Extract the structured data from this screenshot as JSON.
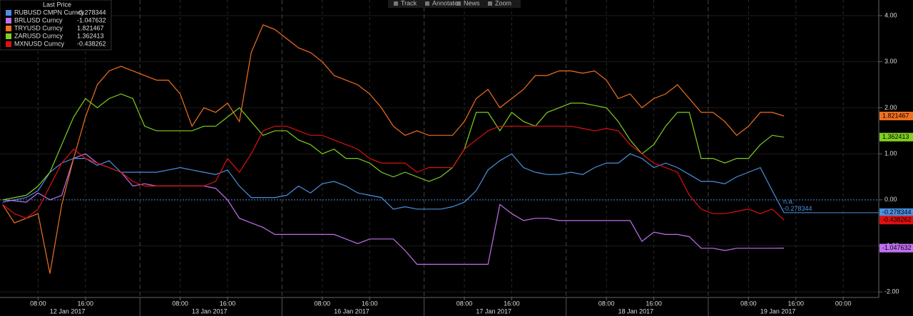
{
  "toolbar": [
    "Track",
    "Annotate",
    "News",
    "Zoom"
  ],
  "chart_data": {
    "type": "line",
    "legend_title": "Last Price",
    "annotation": "n.a.",
    "categories": [
      null,
      null,
      null,
      null,
      "08:00",
      null,
      null,
      null,
      "16:00",
      null,
      null,
      null,
      null,
      null,
      null,
      null,
      "08:00",
      null,
      null,
      null,
      "16:00",
      null,
      null,
      null,
      null,
      null,
      null,
      null,
      "08:00",
      null,
      null,
      null,
      "16:00",
      null,
      null,
      null,
      null,
      null,
      null,
      null,
      "08:00",
      null,
      null,
      null,
      "16:00",
      null,
      null,
      null,
      null,
      null,
      null,
      null,
      "08:00",
      null,
      null,
      null,
      "16:00",
      null,
      null,
      null,
      null,
      null,
      null,
      null,
      "08:00",
      null,
      null,
      null,
      "16:00",
      null,
      null,
      null,
      "00:00",
      null,
      null,
      null
    ],
    "x_groups": [
      "12 Jan 2017",
      "13 Jan 2017",
      "16 Jan 2017",
      "17 Jan 2017",
      "18 Jan 2017",
      "19 Jan 2017"
    ],
    "ylim": [
      -2.12,
      4.34
    ],
    "yticks": [
      {
        "value": -2,
        "label": "-2.00"
      },
      {
        "value": -1,
        "label": "-1.00"
      },
      {
        "value": 0,
        "label": "0.00"
      },
      {
        "value": 1,
        "label": "1.00"
      },
      {
        "value": 2,
        "label": "2.00"
      },
      {
        "value": 3,
        "label": "3.00"
      },
      {
        "value": 4,
        "label": "4.00"
      }
    ],
    "grid": true,
    "series": [
      {
        "name": "RUBUSD CMPN Curncy",
        "color": "#4a90e2",
        "values": [
          null,
          -0.05,
          0.0,
          0.05,
          0.2,
          0.6,
          0.8,
          0.9,
          0.9,
          0.75,
          0.85,
          0.6,
          0.6,
          0.6,
          0.6,
          0.65,
          0.7,
          0.65,
          0.6,
          0.55,
          0.65,
          0.3,
          0.05,
          0.05,
          0.05,
          0.1,
          0.3,
          0.15,
          0.35,
          0.4,
          0.3,
          0.15,
          0.1,
          0.05,
          -0.2,
          -0.15,
          -0.2,
          -0.2,
          -0.2,
          -0.15,
          -0.05,
          0.2,
          0.65,
          0.85,
          1.0,
          0.7,
          0.6,
          0.55,
          0.55,
          0.6,
          0.55,
          0.7,
          0.8,
          0.8,
          1.0,
          0.9,
          0.7,
          0.8,
          0.7,
          0.55,
          0.4,
          0.4,
          0.35,
          0.5,
          0.6,
          0.7,
          0.2,
          -0.278344,
          null,
          null,
          null,
          null,
          null,
          null,
          null,
          null
        ]
      },
      {
        "name": "BRLUSD Curncy",
        "color": "#c070f0",
        "values": [
          null,
          0.0,
          -0.02,
          -0.05,
          0.15,
          0.0,
          0.1,
          0.9,
          1.0,
          0.8,
          0.7,
          0.6,
          0.3,
          0.35,
          0.3,
          0.3,
          0.3,
          0.3,
          0.3,
          0.25,
          0.0,
          -0.4,
          -0.5,
          -0.6,
          -0.75,
          -0.75,
          -0.75,
          -0.75,
          -0.75,
          -0.75,
          -0.85,
          -0.95,
          -0.85,
          -0.85,
          -0.85,
          -1.1,
          -1.4,
          -1.4,
          -1.4,
          -1.4,
          -1.4,
          -1.4,
          -1.4,
          -0.1,
          -0.3,
          -0.45,
          -0.4,
          -0.4,
          -0.45,
          -0.45,
          -0.45,
          -0.45,
          -0.45,
          -0.45,
          -0.45,
          -0.9,
          -0.7,
          -0.75,
          -0.75,
          -0.8,
          -1.05,
          -1.05,
          -1.1,
          -1.05,
          -1.05,
          -1.05,
          -1.05,
          -1.047632,
          null,
          null,
          null,
          null,
          null,
          null,
          null,
          null
        ]
      },
      {
        "name": "TRYUSD Curncy",
        "color": "#f07020",
        "values": [
          null,
          -0.1,
          -0.5,
          -0.4,
          -0.3,
          -1.6,
          -0.1,
          0.9,
          1.8,
          2.5,
          2.8,
          2.9,
          2.8,
          2.7,
          2.6,
          2.6,
          2.3,
          1.6,
          2.0,
          1.9,
          2.1,
          1.7,
          3.2,
          3.8,
          3.7,
          3.5,
          3.3,
          3.2,
          3.0,
          2.7,
          2.6,
          2.5,
          2.3,
          2.0,
          1.6,
          1.4,
          1.5,
          1.4,
          1.4,
          1.4,
          1.7,
          2.2,
          2.4,
          2.0,
          2.2,
          2.4,
          2.7,
          2.7,
          2.8,
          2.8,
          2.75,
          2.8,
          2.6,
          2.2,
          2.3,
          2.0,
          2.2,
          2.3,
          2.5,
          2.2,
          1.9,
          1.9,
          1.7,
          1.4,
          1.6,
          1.9,
          1.9,
          1.821467,
          null,
          null,
          null,
          null,
          null,
          null,
          null,
          null
        ]
      },
      {
        "name": "ZARUSD Curncy",
        "color": "#80d020",
        "values": [
          null,
          0.0,
          0.05,
          0.1,
          0.3,
          0.6,
          1.2,
          1.8,
          2.2,
          2.0,
          2.2,
          2.3,
          2.2,
          1.6,
          1.5,
          1.5,
          1.5,
          1.5,
          1.6,
          1.6,
          1.8,
          2.0,
          1.7,
          1.4,
          1.5,
          1.5,
          1.3,
          1.2,
          1.0,
          1.1,
          0.9,
          0.9,
          0.8,
          0.6,
          0.5,
          0.6,
          0.5,
          0.4,
          0.5,
          0.7,
          1.1,
          1.9,
          1.9,
          1.5,
          1.9,
          1.7,
          1.6,
          1.9,
          2.0,
          2.1,
          2.1,
          2.05,
          2.0,
          1.7,
          1.3,
          1.0,
          1.2,
          1.6,
          1.9,
          1.9,
          0.9,
          0.9,
          0.8,
          0.9,
          0.9,
          1.2,
          1.4,
          1.362413,
          null,
          null,
          null,
          null,
          null,
          null,
          null,
          null
        ]
      },
      {
        "name": "MXNUSD Curncy",
        "color": "#e01010",
        "values": [
          null,
          -0.1,
          -0.3,
          -0.4,
          -0.2,
          0.3,
          0.8,
          1.1,
          0.9,
          0.8,
          0.7,
          0.6,
          0.4,
          0.3,
          0.3,
          0.3,
          0.3,
          0.3,
          0.3,
          0.4,
          0.9,
          0.6,
          1.0,
          1.5,
          1.6,
          1.6,
          1.5,
          1.4,
          1.4,
          1.3,
          1.2,
          1.1,
          0.9,
          0.8,
          0.8,
          0.8,
          0.6,
          0.7,
          0.7,
          0.7,
          1.1,
          1.3,
          1.5,
          1.6,
          1.6,
          1.6,
          1.6,
          1.6,
          1.6,
          1.6,
          1.55,
          1.5,
          1.55,
          1.5,
          1.2,
          1.0,
          0.8,
          0.7,
          0.6,
          0.1,
          -0.2,
          -0.3,
          -0.3,
          -0.25,
          -0.2,
          -0.3,
          -0.2,
          -0.438262,
          null,
          null,
          null,
          null,
          null,
          null,
          null,
          null
        ]
      }
    ]
  }
}
